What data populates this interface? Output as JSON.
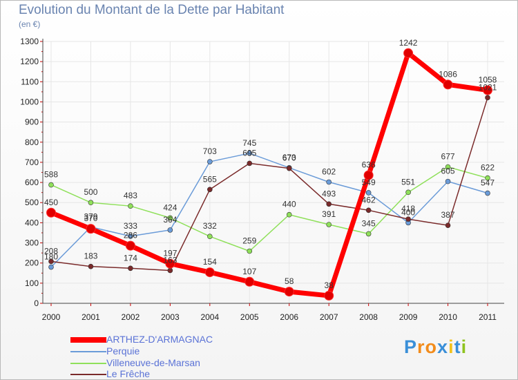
{
  "chart_data": {
    "type": "line",
    "title": "Evolution du Montant de la Dette par Habitant",
    "ylabel": "(en €)",
    "xlabel": "",
    "x": [
      "2000",
      "2001",
      "2002",
      "2003",
      "2004",
      "2005",
      "2006",
      "2007",
      "2008",
      "2009",
      "2010",
      "2011"
    ],
    "ylim": [
      0,
      1300
    ],
    "yticks": [
      0,
      100,
      200,
      300,
      400,
      500,
      600,
      700,
      800,
      900,
      1000,
      1100,
      1200,
      1300
    ],
    "legend_position": "bottom-left",
    "series": [
      {
        "name": "ARTHEZ-D'ARMAGNAC",
        "color": "#ff0000",
        "values": [
          450,
          370,
          286,
          197,
          154,
          107,
          58,
          38,
          636,
          1242,
          1086,
          1058
        ]
      },
      {
        "name": "Perquie",
        "color": "#6a9bd8",
        "values": [
          180,
          379,
          333,
          364,
          703,
          745,
          673,
          602,
          549,
          400,
          605,
          547
        ]
      },
      {
        "name": "Villeneuve-de-Marsan",
        "color": "#8fe05a",
        "values": [
          588,
          500,
          483,
          424,
          332,
          259,
          440,
          391,
          345,
          551,
          677,
          622
        ]
      },
      {
        "name": "Le Frêche",
        "color": "#7a2a2a",
        "values": [
          208,
          183,
          174,
          163,
          565,
          695,
          670,
          493,
          462,
          418,
          387,
          1021
        ]
      }
    ]
  },
  "logo": {
    "text": "Proxiti"
  }
}
